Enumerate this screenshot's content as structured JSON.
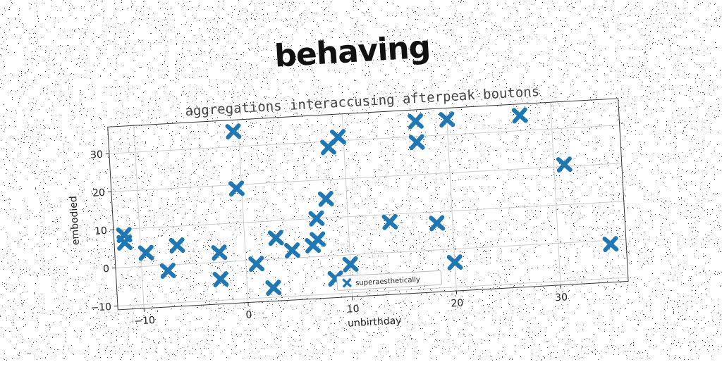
{
  "chart_data": {
    "type": "scatter",
    "title": "behaving",
    "subtitle": "aggregations interaccusing afterpeak boutons",
    "xlabel": "unbirthday",
    "ylabel": "embodied",
    "xlim": [
      -12.5,
      36.5
    ],
    "ylim": [
      -11,
      37
    ],
    "xticks": [
      -10,
      0,
      10,
      20,
      30
    ],
    "yticks": [
      -10,
      0,
      10,
      20,
      30
    ],
    "xtick_labels": [
      "−10",
      "0",
      "10",
      "20",
      "30"
    ],
    "ytick_labels": [
      "−10",
      "0",
      "10",
      "20",
      "30"
    ],
    "grid": true,
    "legend_position": "bottom-center",
    "series": [
      {
        "name": "superaesthetically",
        "color": "#1f77b4",
        "marker": "x",
        "points": [
          [
            -11.5,
            8.5
          ],
          [
            -11.5,
            6.5
          ],
          [
            -9.5,
            3.5
          ],
          [
            -7.5,
            -1.5
          ],
          [
            -6.5,
            5
          ],
          [
            -2.5,
            2.5
          ],
          [
            -2.5,
            -4.5
          ],
          [
            -0.5,
            34
          ],
          [
            -0.5,
            19
          ],
          [
            1,
            -1
          ],
          [
            2.5,
            -7.5
          ],
          [
            3,
            5.5
          ],
          [
            4.5,
            2
          ],
          [
            6.5,
            3
          ],
          [
            7,
            4.5
          ],
          [
            7,
            10
          ],
          [
            8,
            15
          ],
          [
            8.5,
            28.5
          ],
          [
            8.5,
            -6
          ],
          [
            9.5,
            31
          ],
          [
            10,
            -2.5
          ],
          [
            14,
            8
          ],
          [
            17,
            34
          ],
          [
            17,
            28.5
          ],
          [
            18.5,
            7
          ],
          [
            20,
            34
          ],
          [
            20,
            -3.5
          ],
          [
            27,
            34
          ],
          [
            31,
            20.5
          ],
          [
            35,
            -1
          ]
        ]
      }
    ]
  }
}
